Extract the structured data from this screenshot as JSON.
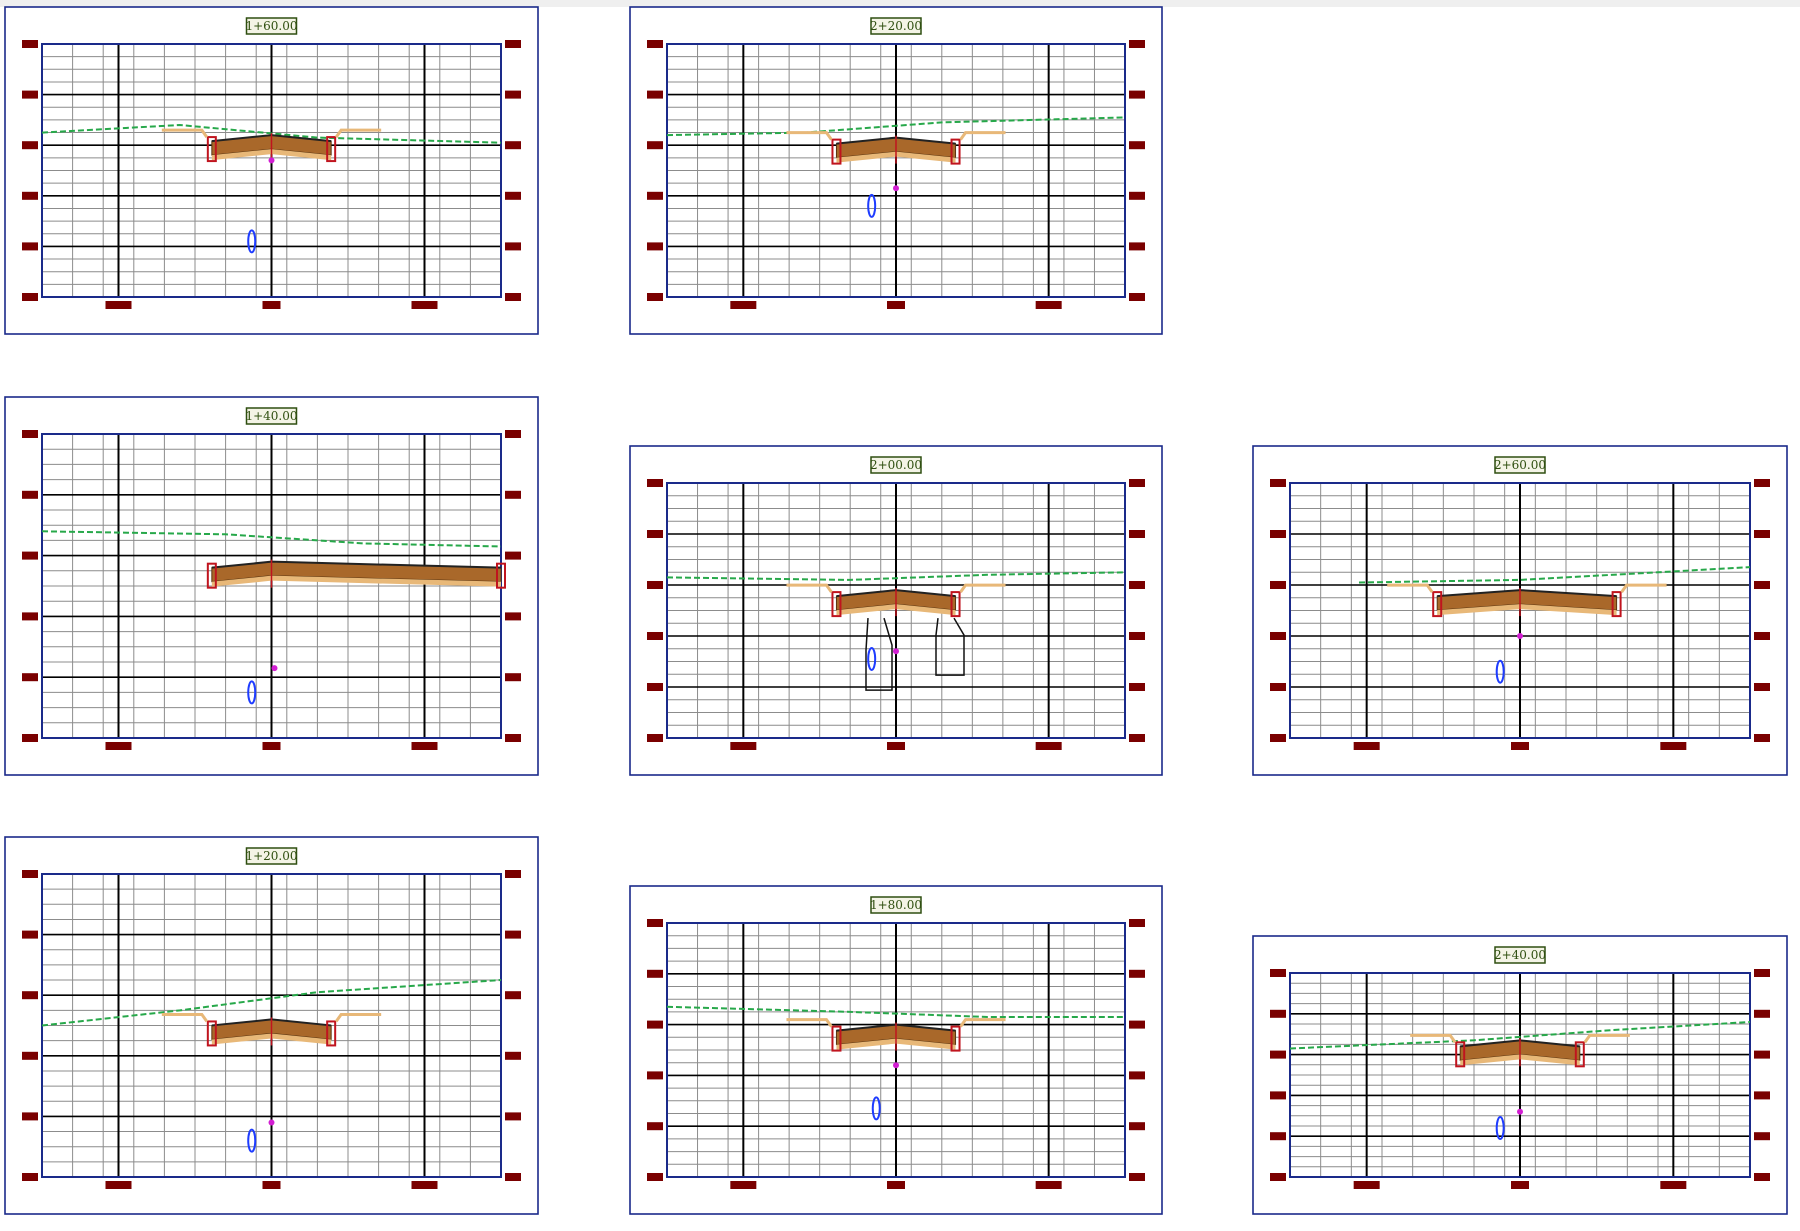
{
  "panels": [
    {
      "station": "1+60.00",
      "offset_dir": -1
    },
    {
      "station": "2+20.00",
      "offset_dir": 1
    },
    {
      "station": "1+40.00",
      "offset_dir": -1
    },
    {
      "station": "2+00.00",
      "offset_dir": 1
    },
    {
      "station": "2+60.00",
      "offset_dir": -1
    },
    {
      "station": "1+20.00",
      "offset_dir": -1
    },
    {
      "station": "1+80.00",
      "offset_dir": 1
    },
    {
      "station": "2+40.00",
      "offset_dir": -1
    }
  ],
  "colors": {
    "frame": "#1a2a8a",
    "grid_minor": "#8c8c8c",
    "grid_major": "#000000",
    "tick": "#7a0000",
    "label_border": "#2f4f10",
    "label_fill": "#f4f4e6",
    "label_text": "#2f4f10",
    "ground_line": "#27a84a",
    "pavement": "#a9682a",
    "pavement_light": "#e8b878",
    "curb": "#c0141e",
    "centerline_point": "#d21ed2",
    "ellipse": "#1e3cff"
  }
}
